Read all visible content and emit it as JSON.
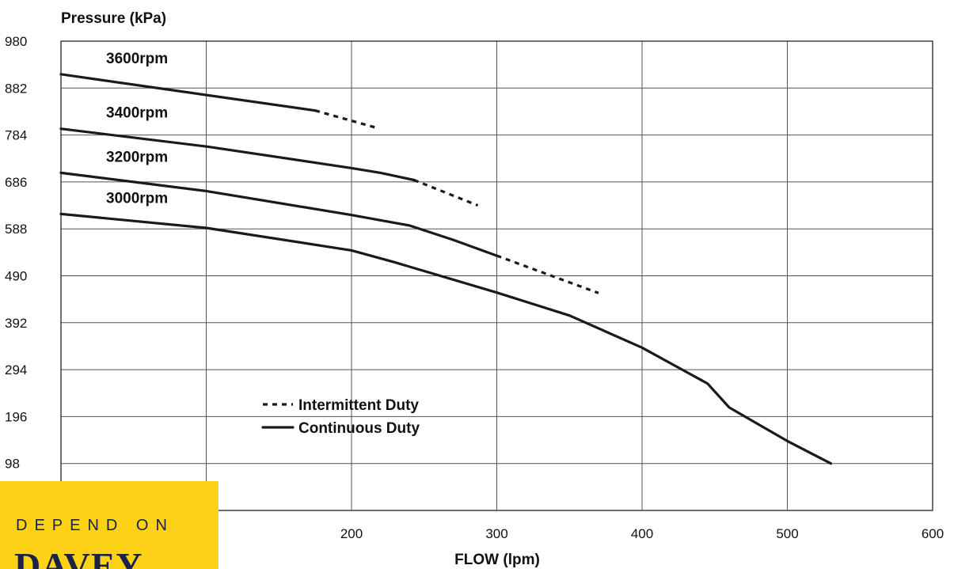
{
  "chart_data": {
    "type": "line",
    "ylabel": "Pressure (kPa)",
    "xlabel": "FLOW (lpm)",
    "xlim": [
      0,
      600
    ],
    "ylim": [
      0,
      980
    ],
    "x_ticks": [
      200,
      300,
      400,
      500,
      600
    ],
    "y_ticks": [
      98,
      196,
      294,
      392,
      490,
      588,
      686,
      784,
      882,
      980
    ],
    "grid": true,
    "legend": {
      "placement": "bottom-center",
      "entries": [
        {
          "label": "Intermittent Duty",
          "style": "dashed"
        },
        {
          "label": "Continuous Duty",
          "style": "solid"
        }
      ]
    },
    "series": [
      {
        "name": "3600rpm",
        "continuous": [
          [
            0,
            911
          ],
          [
            175,
            835
          ]
        ],
        "intermittent": [
          [
            175,
            835
          ],
          [
            216,
            800
          ]
        ]
      },
      {
        "name": "3400rpm",
        "continuous": [
          [
            0,
            797
          ],
          [
            100,
            760
          ],
          [
            200,
            715
          ],
          [
            220,
            705
          ],
          [
            243,
            690
          ]
        ],
        "intermittent": [
          [
            243,
            690
          ],
          [
            287,
            637
          ]
        ]
      },
      {
        "name": "3200rpm",
        "continuous": [
          [
            0,
            705
          ],
          [
            100,
            667
          ],
          [
            200,
            617
          ],
          [
            240,
            595
          ],
          [
            270,
            565
          ],
          [
            300,
            532
          ]
        ],
        "intermittent": [
          [
            300,
            532
          ],
          [
            370,
            454
          ]
        ]
      },
      {
        "name": "3000rpm",
        "continuous": [
          [
            0,
            619
          ],
          [
            100,
            590
          ],
          [
            200,
            543
          ],
          [
            230,
            518
          ],
          [
            300,
            455
          ],
          [
            350,
            407
          ],
          [
            400,
            340
          ],
          [
            430,
            290
          ],
          [
            445,
            265
          ],
          [
            460,
            215
          ],
          [
            480,
            180
          ],
          [
            500,
            145
          ],
          [
            530,
            98
          ]
        ]
      }
    ]
  },
  "logo": {
    "tagline": "DEPEND ON",
    "wordmark": "DAVEY",
    "background": "#fcd116",
    "text_color": "#1b2346"
  },
  "colors": {
    "line": "#1a1a1a",
    "grid": "#555555"
  }
}
